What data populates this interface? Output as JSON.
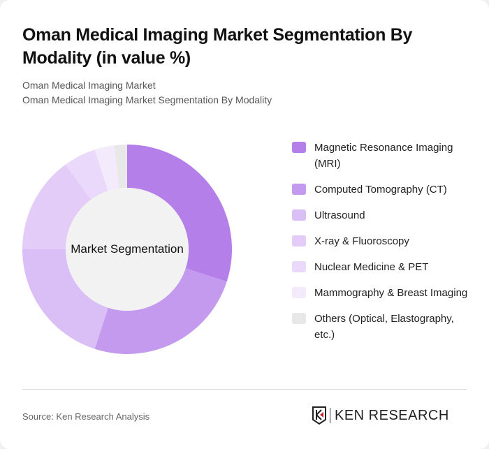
{
  "header": {
    "title": "Oman Medical Imaging Market Segmentation By Modality (in value %)",
    "subtitle_1": "Oman Medical Imaging Market",
    "subtitle_2": "Oman Medical Imaging Market Segmentation By Modality"
  },
  "chart": {
    "center_label": "Market Segmentation"
  },
  "legend": [
    {
      "label": "Magnetic Resonance Imaging (MRI)",
      "color": "#b57fea"
    },
    {
      "label": "Computed Tomography (CT)",
      "color": "#c49aef"
    },
    {
      "label": "Ultrasound",
      "color": "#d9bff5"
    },
    {
      "label": "X-ray & Fluoroscopy",
      "color": "#e3cdf8"
    },
    {
      "label": "Nuclear Medicine & PET",
      "color": "#ead9fa"
    },
    {
      "label": "Mammography & Breast Imaging",
      "color": "#f3eafc"
    },
    {
      "label": "Others (Optical, Elastography, etc.)",
      "color": "#e8e8e8"
    }
  ],
  "footer": {
    "source": "Source: Ken Research Analysis",
    "logo_text": "KEN RESEARCH"
  },
  "chart_data": {
    "type": "pie",
    "title": "Oman Medical Imaging Market Segmentation By Modality (in value %)",
    "center_label": "Market Segmentation",
    "categories": [
      "Magnetic Resonance Imaging (MRI)",
      "Computed Tomography (CT)",
      "Ultrasound",
      "X-ray & Fluoroscopy",
      "Nuclear Medicine & PET",
      "Mammography & Breast Imaging",
      "Others (Optical, Elastography, etc.)"
    ],
    "values": [
      30,
      25,
      20,
      15,
      5,
      3,
      2
    ],
    "colors": [
      "#b57fea",
      "#c49aef",
      "#d9bff5",
      "#e3cdf8",
      "#ead9fa",
      "#f3eafc",
      "#e8e8e8"
    ],
    "donut": true,
    "legend_position": "right"
  }
}
